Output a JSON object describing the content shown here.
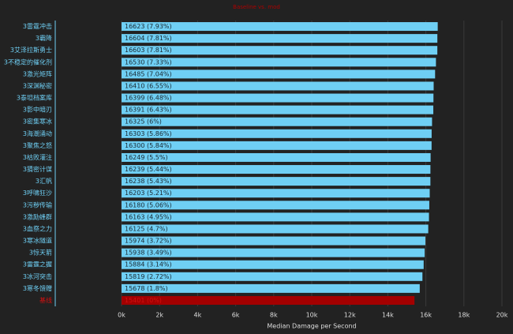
{
  "chart_data": {
    "type": "bar",
    "orientation": "horizontal",
    "title": "Baseline vs. mod",
    "x_label": "Median Damage per Second",
    "categories": [
      "3雷霆冲击",
      "3霸降",
      "3艾泽拉斯勇士",
      "3不稳定的催化剂",
      "3激光矩阵",
      "3深渊秘密",
      "3泰坦档案库",
      "3影中暗刃",
      "3密集寒冰",
      "3海潮涌动",
      "3聚焦之怒",
      "3枯败灌注",
      "3猜密计谋",
      "3汇帆",
      "3呼啸狂沙",
      "3污秽传输",
      "3激励蜂群",
      "3血祭之力",
      "3寒冰隧道",
      "3惊天箭",
      "3雷霆之握",
      "3冰河突击",
      "3寒冬馈赠",
      "基线"
    ],
    "values": [
      16623,
      16604,
      16603,
      16530,
      16485,
      16410,
      16399,
      16391,
      16325,
      16303,
      16300,
      16249,
      16239,
      16238,
      16203,
      16180,
      16163,
      16125,
      15974,
      15938,
      15884,
      15819,
      15678,
      15401
    ],
    "value_labels": [
      "16623 (7.93%)",
      "16604 (7.81%)",
      "16603 (7.81%)",
      "16530 (7.33%)",
      "16485 (7.04%)",
      "16410 (6.55%)",
      "16399 (6.48%)",
      "16391 (6.43%)",
      "16325 (6%)",
      "16303 (5.86%)",
      "16300 (5.84%)",
      "16249 (5.5%)",
      "16239 (5.44%)",
      "16238 (5.43%)",
      "16203 (5.21%)",
      "16180 (5.06%)",
      "16163 (4.95%)",
      "16125 (4.7%)",
      "15974 (3.72%)",
      "15938 (3.49%)",
      "15884 (3.14%)",
      "15819 (2.72%)",
      "15678 (1.8%)",
      "15401 (0%)"
    ],
    "color": "#6fcff4",
    "highlight_color": "#a30000",
    "label_color": "#6fcff4",
    "highlight_label_color": "#d01010",
    "xlim": [
      0,
      20000
    ],
    "xticks": [
      {
        "value": 0,
        "label": "0k"
      },
      {
        "value": 2000,
        "label": "2k"
      },
      {
        "value": 4000,
        "label": "4k"
      },
      {
        "value": 6000,
        "label": "6k"
      },
      {
        "value": 8000,
        "label": "8k"
      },
      {
        "value": 10000,
        "label": "10k"
      },
      {
        "value": 12000,
        "label": "12k"
      },
      {
        "value": 14000,
        "label": "14k"
      },
      {
        "value": 16000,
        "label": "16k"
      },
      {
        "value": 18000,
        "label": "18k"
      },
      {
        "value": 20000,
        "label": "20k"
      }
    ],
    "grid": true
  }
}
